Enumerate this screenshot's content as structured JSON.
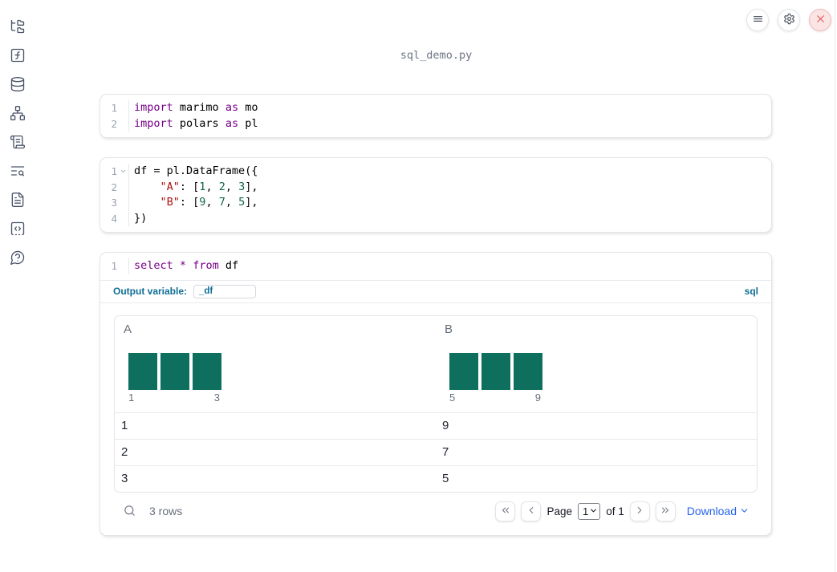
{
  "window": {
    "title": "sql_demo.py",
    "controls": [
      {
        "name": "menu-button",
        "icon": "menu"
      },
      {
        "name": "settings-button",
        "icon": "gear"
      },
      {
        "name": "close-button",
        "icon": "x"
      }
    ]
  },
  "sidebar": {
    "icons": [
      {
        "name": "file-explorer"
      },
      {
        "name": "function-square"
      },
      {
        "name": "datasources"
      },
      {
        "name": "dependency-graph"
      },
      {
        "name": "logs-scroll"
      },
      {
        "name": "text-search"
      },
      {
        "name": "document"
      },
      {
        "name": "snippets-code"
      },
      {
        "name": "help-chat"
      }
    ]
  },
  "cells": [
    {
      "type": "python",
      "lines": [
        {
          "number": "1",
          "fold": false,
          "tokens": [
            [
              "kw",
              "import"
            ],
            [
              "pl",
              " marimo "
            ],
            [
              "kw",
              "as"
            ],
            [
              "pl",
              " mo"
            ]
          ]
        },
        {
          "number": "2",
          "fold": false,
          "tokens": [
            [
              "kw",
              "import"
            ],
            [
              "pl",
              " polars "
            ],
            [
              "kw",
              "as"
            ],
            [
              "pl",
              " pl"
            ]
          ]
        }
      ]
    },
    {
      "type": "python",
      "lines": [
        {
          "number": "1",
          "fold": true,
          "tokens": [
            [
              "pl",
              "df = pl.DataFrame({"
            ]
          ]
        },
        {
          "number": "2",
          "fold": false,
          "tokens": [
            [
              "pl",
              "    "
            ],
            [
              "str",
              "\"A\""
            ],
            [
              "pl",
              ": ["
            ],
            [
              "num",
              "1"
            ],
            [
              "pl",
              ", "
            ],
            [
              "num",
              "2"
            ],
            [
              "pl",
              ", "
            ],
            [
              "num",
              "3"
            ],
            [
              "pl",
              "],"
            ]
          ]
        },
        {
          "number": "3",
          "fold": false,
          "tokens": [
            [
              "pl",
              "    "
            ],
            [
              "str",
              "\"B\""
            ],
            [
              "pl",
              ": ["
            ],
            [
              "num",
              "9"
            ],
            [
              "pl",
              ", "
            ],
            [
              "num",
              "7"
            ],
            [
              "pl",
              ", "
            ],
            [
              "num",
              "5"
            ],
            [
              "pl",
              "],"
            ]
          ]
        },
        {
          "number": "4",
          "fold": false,
          "tokens": [
            [
              "pl",
              "})"
            ]
          ]
        }
      ]
    },
    {
      "type": "sql",
      "lines": [
        {
          "number": "1",
          "fold": false,
          "tokens": [
            [
              "kw",
              "select"
            ],
            [
              "pl",
              " "
            ],
            [
              "kw",
              "*"
            ],
            [
              "pl",
              " "
            ],
            [
              "kw",
              "from"
            ],
            [
              "pl",
              " df"
            ]
          ]
        }
      ],
      "footer": {
        "output_variable_label": "Output variable:",
        "output_variable_value": "_df",
        "language_badge": "sql"
      }
    }
  ],
  "table": {
    "columns": [
      {
        "header": "A",
        "histogram": {
          "bar_count": 3,
          "min_label": "1",
          "max_label": "3"
        }
      },
      {
        "header": "B",
        "histogram": {
          "bar_count": 3,
          "min_label": "5",
          "max_label": "9"
        }
      }
    ],
    "rows": [
      [
        "1",
        "9"
      ],
      [
        "2",
        "7"
      ],
      [
        "3",
        "5"
      ]
    ],
    "footer": {
      "search_icon": "magnifier",
      "row_count": "3 rows",
      "page_label": "Page",
      "page_value": "1",
      "page_total_label": "of 1",
      "pager_icons": [
        "chevrons-left",
        "chevron-left",
        "chevron-right",
        "chevrons-right"
      ],
      "download_label": "Download"
    }
  },
  "colors": {
    "keyword": "#770088",
    "string": "#aa1111",
    "number": "#116644",
    "histogram_bar": "#0e6f5f",
    "sql_accent": "#0e6d95",
    "download_link": "#2563eb",
    "close_button": "#e05555"
  }
}
